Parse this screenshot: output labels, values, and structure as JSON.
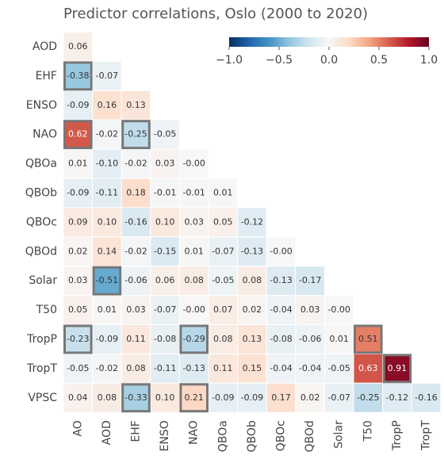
{
  "chart_data": {
    "type": "heatmap",
    "title": "Predictor correlations, Oslo (2000 to 2020)",
    "rows": [
      "AOD",
      "EHF",
      "ENSO",
      "NAO",
      "QBOa",
      "QBOb",
      "QBOc",
      "QBOd",
      "Solar",
      "T50",
      "TropP",
      "TropT",
      "VPSC"
    ],
    "columns": [
      "AO",
      "AOD",
      "EHF",
      "ENSO",
      "NAO",
      "QBOa",
      "QBOb",
      "QBOc",
      "QBOd",
      "Solar",
      "T50",
      "TropP",
      "TropT"
    ],
    "values": [
      [
        0.06
      ],
      [
        -0.38,
        -0.07
      ],
      [
        -0.09,
        0.16,
        0.13
      ],
      [
        0.62,
        -0.02,
        -0.25,
        -0.05
      ],
      [
        0.01,
        -0.1,
        -0.02,
        0.03,
        -0.0
      ],
      [
        -0.09,
        -0.11,
        0.18,
        -0.01,
        -0.01,
        0.01
      ],
      [
        0.09,
        0.1,
        -0.16,
        0.1,
        0.03,
        0.05,
        -0.12
      ],
      [
        0.02,
        0.14,
        -0.02,
        -0.15,
        0.01,
        -0.07,
        -0.13,
        -0.0
      ],
      [
        0.03,
        -0.51,
        -0.06,
        0.06,
        0.08,
        -0.05,
        0.08,
        -0.13,
        -0.17
      ],
      [
        0.05,
        0.01,
        0.03,
        -0.07,
        -0.0,
        0.07,
        0.02,
        -0.04,
        0.03,
        -0.0
      ],
      [
        -0.23,
        -0.09,
        0.11,
        -0.08,
        -0.29,
        0.08,
        0.13,
        -0.08,
        -0.06,
        0.01,
        0.51
      ],
      [
        -0.05,
        -0.02,
        0.08,
        -0.11,
        -0.13,
        0.11,
        0.15,
        -0.04,
        -0.04,
        -0.05,
        0.63,
        0.91
      ],
      [
        0.04,
        0.08,
        -0.33,
        0.1,
        0.21,
        -0.09,
        -0.09,
        0.17,
        0.02,
        -0.07,
        -0.25,
        -0.12,
        -0.16
      ]
    ],
    "value_labels": [
      [
        "0.06"
      ],
      [
        "-0.38",
        "-0.07"
      ],
      [
        "-0.09",
        "0.16",
        "0.13"
      ],
      [
        "0.62",
        "-0.02",
        "-0.25",
        "-0.05"
      ],
      [
        "0.01",
        "-0.10",
        "-0.02",
        "0.03",
        "-0.00"
      ],
      [
        "-0.09",
        "-0.11",
        "0.18",
        "-0.01",
        "-0.01",
        "0.01"
      ],
      [
        "0.09",
        "0.10",
        "-0.16",
        "0.10",
        "0.03",
        "0.05",
        "-0.12"
      ],
      [
        "0.02",
        "0.14",
        "-0.02",
        "-0.15",
        "0.01",
        "-0.07",
        "-0.13",
        "-0.00"
      ],
      [
        "0.03",
        "-0.51",
        "-0.06",
        "0.06",
        "0.08",
        "-0.05",
        "0.08",
        "-0.13",
        "-0.17"
      ],
      [
        "0.05",
        "0.01",
        "0.03",
        "-0.07",
        "-0.00",
        "0.07",
        "0.02",
        "-0.04",
        "0.03",
        "-0.00"
      ],
      [
        "-0.23",
        "-0.09",
        "0.11",
        "-0.08",
        "-0.29",
        "0.08",
        "0.13",
        "-0.08",
        "-0.06",
        "0.01",
        "0.51"
      ],
      [
        "-0.05",
        "-0.02",
        "0.08",
        "-0.11",
        "-0.13",
        "0.11",
        "0.15",
        "-0.04",
        "-0.04",
        "-0.05",
        "0.63",
        "0.91"
      ],
      [
        "0.04",
        "0.08",
        "-0.33",
        "0.10",
        "0.21",
        "-0.09",
        "-0.09",
        "0.17",
        "0.02",
        "-0.07",
        "-0.25",
        "-0.12",
        "-0.16"
      ]
    ],
    "highlighted": [
      [
        "EHF",
        "AO"
      ],
      [
        "NAO",
        "AO"
      ],
      [
        "NAO",
        "EHF"
      ],
      [
        "Solar",
        "AOD"
      ],
      [
        "TropP",
        "AO"
      ],
      [
        "TropP",
        "NAO"
      ],
      [
        "TropP",
        "T50"
      ],
      [
        "TropT",
        "TropP"
      ],
      [
        "VPSC",
        "EHF"
      ],
      [
        "VPSC",
        "NAO"
      ]
    ],
    "colors": [
      "#053061",
      "#2166ac",
      "#4393c3",
      "#92c5de",
      "#d1e5f0",
      "#f7f7f7",
      "#fddbc7",
      "#f4a582",
      "#d6604d",
      "#b2182b",
      "#67001f"
    ],
    "zlim": [
      -1,
      1
    ],
    "zticks": [
      {
        "value": -1,
        "label": "−1.0"
      },
      {
        "value": -0.5,
        "label": "−0.5"
      },
      {
        "value": 0,
        "label": "0.0"
      },
      {
        "value": 0.5,
        "label": "0.5"
      },
      {
        "value": 1,
        "label": "1.0"
      }
    ]
  }
}
